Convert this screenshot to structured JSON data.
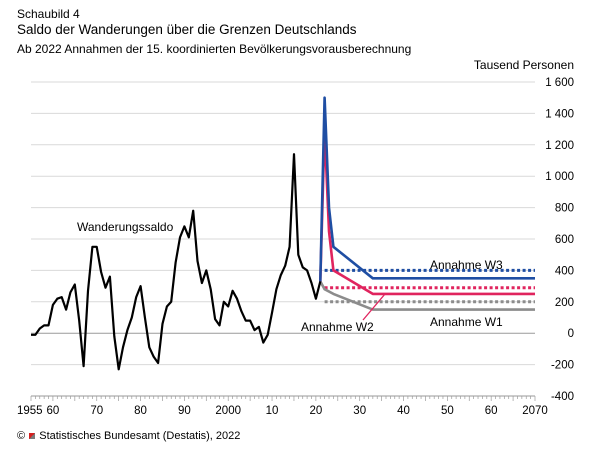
{
  "header": {
    "kicker": "Schaubild 4",
    "title": "Saldo der Wanderungen über die Grenzen Deutschlands",
    "subtitle": "Ab 2022 Annahmen der 15. koordinierten Bevölkerungsvorausberechnung"
  },
  "footer": {
    "source": "Statistisches Bundesamt (Destatis), 2022"
  },
  "chart_data": {
    "type": "line",
    "ylabel": "Tausend Personen",
    "ylim": [
      -400,
      1600
    ],
    "xlim": [
      1955,
      2070
    ],
    "y_ticks": [
      -400,
      -200,
      0,
      200,
      400,
      600,
      800,
      1000,
      1200,
      1400,
      1600
    ],
    "y_tick_labels": [
      "-400",
      "-200",
      "0",
      "200",
      "400",
      "600",
      "800",
      "1 000",
      "1 200",
      "1 400",
      "1 600"
    ],
    "x_tick_labels": [
      {
        "x": 1955,
        "label": "1955"
      },
      {
        "x": 1960,
        "label": "60"
      },
      {
        "x": 1970,
        "label": "70"
      },
      {
        "x": 1980,
        "label": "80"
      },
      {
        "x": 1990,
        "label": "90"
      },
      {
        "x": 2000,
        "label": "2000"
      },
      {
        "x": 2010,
        "label": "10"
      },
      {
        "x": 2020,
        "label": "20"
      },
      {
        "x": 2030,
        "label": "30"
      },
      {
        "x": 2040,
        "label": "40"
      },
      {
        "x": 2050,
        "label": "50"
      },
      {
        "x": 2060,
        "label": "60"
      },
      {
        "x": 2070,
        "label": "2070"
      }
    ],
    "grid": "horizontal",
    "annotations": {
      "historical": "Wanderungssaldo",
      "w1": "Annahme W1",
      "w2": "Annahme W2",
      "w3": "Annahme W3"
    },
    "series": [
      {
        "key": "historical",
        "color": "#000000",
        "style": "solid",
        "x": [
          1955,
          1956,
          1957,
          1958,
          1959,
          1960,
          1961,
          1962,
          1963,
          1964,
          1965,
          1966,
          1967,
          1968,
          1969,
          1970,
          1971,
          1972,
          1973,
          1974,
          1975,
          1976,
          1977,
          1978,
          1979,
          1980,
          1981,
          1982,
          1983,
          1984,
          1985,
          1986,
          1987,
          1988,
          1989,
          1990,
          1991,
          1992,
          1993,
          1994,
          1995,
          1996,
          1997,
          1998,
          1999,
          2000,
          2001,
          2002,
          2003,
          2004,
          2005,
          2006,
          2007,
          2008,
          2009,
          2010,
          2011,
          2012,
          2013,
          2014,
          2015,
          2016,
          2017,
          2018,
          2019,
          2020,
          2021
        ],
        "y": [
          -10,
          -10,
          30,
          50,
          50,
          180,
          220,
          230,
          150,
          260,
          310,
          80,
          -210,
          270,
          550,
          550,
          390,
          290,
          360,
          -20,
          -230,
          -90,
          20,
          100,
          230,
          300,
          100,
          -90,
          -150,
          -190,
          60,
          170,
          200,
          450,
          610,
          680,
          610,
          780,
          460,
          320,
          400,
          280,
          90,
          50,
          200,
          170,
          270,
          220,
          140,
          80,
          80,
          20,
          40,
          -60,
          -10,
          130,
          280,
          370,
          430,
          550,
          1140,
          500,
          420,
          400,
          320,
          220,
          330
        ]
      },
      {
        "key": "w3",
        "color": "#1f4ea3",
        "style": "solid",
        "x": [
          2021,
          2022,
          2023,
          2024,
          2033,
          2070
        ],
        "y": [
          330,
          1500,
          800,
          550,
          350,
          350
        ]
      },
      {
        "key": "w2",
        "color": "#e0245e",
        "style": "solid",
        "x": [
          2021,
          2022,
          2023,
          2024,
          2033,
          2070
        ],
        "y": [
          330,
          1300,
          650,
          400,
          250,
          250
        ]
      },
      {
        "key": "w1",
        "color": "#8c8c8c",
        "style": "solid",
        "x": [
          2021,
          2022,
          2024,
          2033,
          2070
        ],
        "y": [
          330,
          280,
          250,
          150,
          150
        ]
      },
      {
        "key": "w3_dotted",
        "color": "#1f4ea3",
        "style": "dotted",
        "x": [
          2022,
          2070
        ],
        "y": [
          400,
          400
        ]
      },
      {
        "key": "w2_dotted",
        "color": "#e0245e",
        "style": "dotted",
        "x": [
          2022,
          2070
        ],
        "y": [
          290,
          290
        ]
      },
      {
        "key": "w1_dotted",
        "color": "#8c8c8c",
        "style": "dotted",
        "x": [
          2022,
          2070
        ],
        "y": [
          200,
          200
        ]
      }
    ]
  }
}
